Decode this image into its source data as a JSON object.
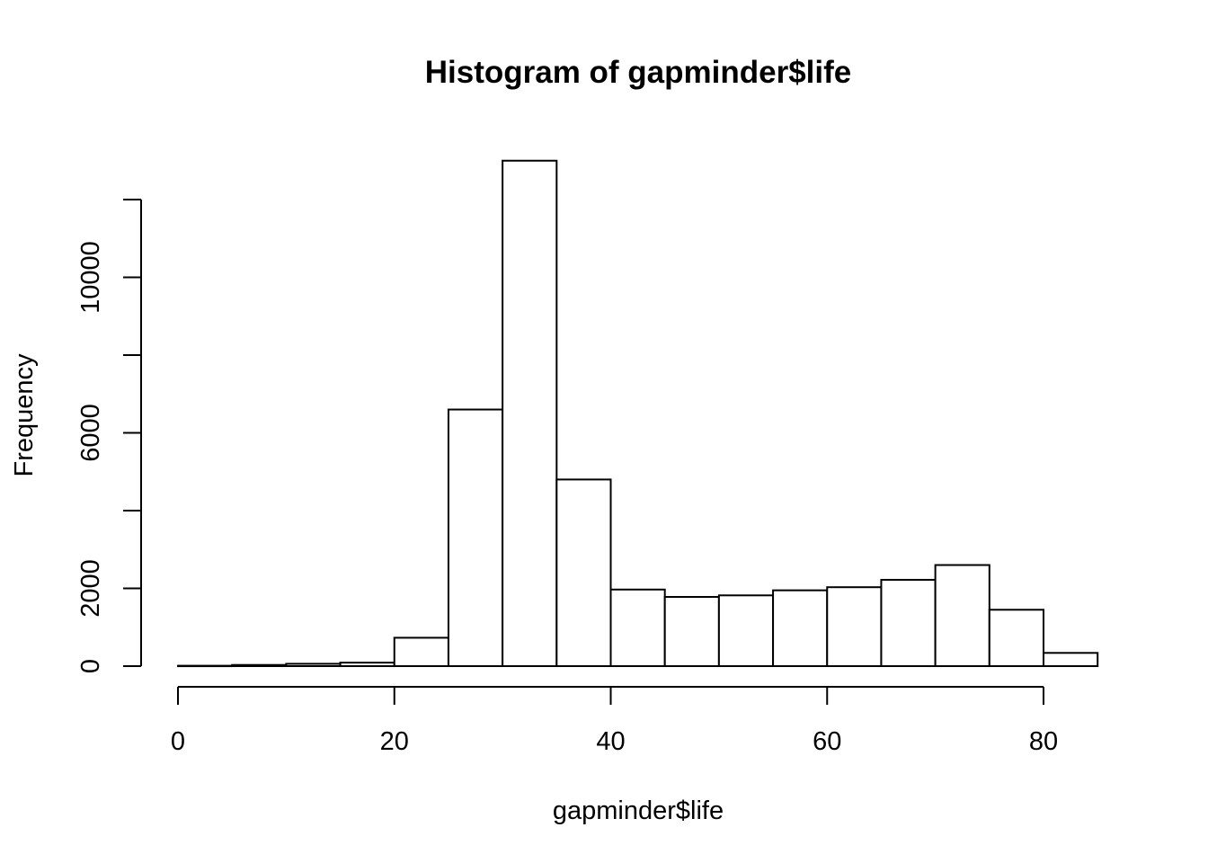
{
  "chart_data": {
    "type": "histogram",
    "title": "Histogram of gapminder$life",
    "xlabel": "gapminder$life",
    "ylabel": "Frequency",
    "xlim": [
      0,
      85
    ],
    "ylim": [
      0,
      13000
    ],
    "x_ticks": [
      0,
      20,
      40,
      60,
      80
    ],
    "y_ticks": [
      0,
      2000,
      4000,
      6000,
      8000,
      10000,
      12000
    ],
    "y_tick_labels": [
      "0",
      "2000",
      "",
      "6000",
      "",
      "10000",
      ""
    ],
    "grid": false,
    "bins": [
      {
        "x0": 0,
        "x1": 5,
        "count": 10
      },
      {
        "x0": 5,
        "x1": 10,
        "count": 30
      },
      {
        "x0": 10,
        "x1": 15,
        "count": 60
      },
      {
        "x0": 15,
        "x1": 20,
        "count": 90
      },
      {
        "x0": 20,
        "x1": 25,
        "count": 730
      },
      {
        "x0": 25,
        "x1": 30,
        "count": 6600
      },
      {
        "x0": 30,
        "x1": 35,
        "count": 13000
      },
      {
        "x0": 35,
        "x1": 40,
        "count": 4800
      },
      {
        "x0": 40,
        "x1": 45,
        "count": 1970
      },
      {
        "x0": 45,
        "x1": 50,
        "count": 1780
      },
      {
        "x0": 50,
        "x1": 55,
        "count": 1820
      },
      {
        "x0": 55,
        "x1": 60,
        "count": 1950
      },
      {
        "x0": 60,
        "x1": 65,
        "count": 2030
      },
      {
        "x0": 65,
        "x1": 70,
        "count": 2220
      },
      {
        "x0": 70,
        "x1": 75,
        "count": 2600
      },
      {
        "x0": 75,
        "x1": 80,
        "count": 1450
      },
      {
        "x0": 80,
        "x1": 85,
        "count": 340
      }
    ]
  }
}
